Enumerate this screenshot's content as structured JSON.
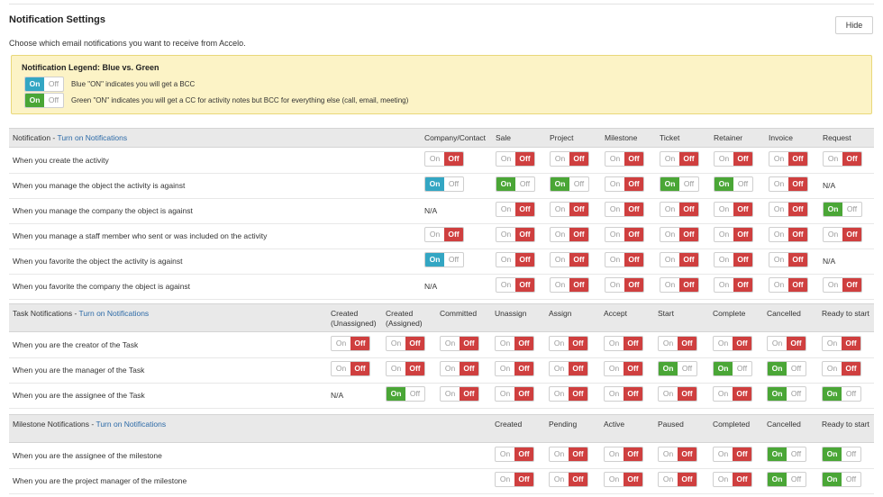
{
  "header": {
    "title": "Notification Settings",
    "hide_label": "Hide",
    "subtitle": "Choose which email notifications you want to receive from Accelo."
  },
  "legend": {
    "title": "Notification Legend: Blue vs. Green",
    "on_label": "On",
    "off_label": "Off",
    "blue_text": "Blue \"ON\" indicates you will get a BCC",
    "green_text": "Green \"ON\" indicates you will get a CC for activity notes but BCC for everything else (call, email, meeting)"
  },
  "toggle_labels": {
    "on": "On",
    "off": "Off"
  },
  "na_label": "N/A",
  "colors": {
    "off": "#cf3f3f",
    "blue_on": "#33a6c3",
    "green_on": "#4aa636",
    "legend_bg": "#fcf3c6",
    "link": "#2c6aa7"
  },
  "sections": [
    {
      "id": "notification",
      "title": "Notification - ",
      "link": "Turn on Notifications",
      "columns": [
        "Company/Contact",
        "Sale",
        "Project",
        "Milestone",
        "Ticket",
        "Retainer",
        "Invoice",
        "Request"
      ],
      "rows": [
        {
          "label": "When you create the activity",
          "states": [
            "off",
            "off",
            "off",
            "off",
            "off",
            "off",
            "off",
            "off"
          ]
        },
        {
          "label": "When you manage the object the activity is against",
          "states": [
            "blue",
            "green",
            "green",
            "off",
            "green",
            "green",
            "off",
            "na"
          ]
        },
        {
          "label": "When you manage the company the object is against",
          "states": [
            "na",
            "off",
            "off",
            "off",
            "off",
            "off",
            "off",
            "green"
          ]
        },
        {
          "label": "When you manage a staff member who sent or was included on the activity",
          "states": [
            "off",
            "off",
            "off",
            "off",
            "off",
            "off",
            "off",
            "off"
          ]
        },
        {
          "label": "When you favorite the object the activity is against",
          "states": [
            "blue",
            "off",
            "off",
            "off",
            "off",
            "off",
            "off",
            "na"
          ]
        },
        {
          "label": "When you favorite the company the object is against",
          "states": [
            "na",
            "off",
            "off",
            "off",
            "off",
            "off",
            "off",
            "off"
          ]
        }
      ]
    },
    {
      "id": "task",
      "title": "Task Notifications - ",
      "link": "Turn on Notifications",
      "columns": [
        "Created (Unassigned)",
        "Created (Assigned)",
        "Committed",
        "Unassign",
        "Assign",
        "Accept",
        "Start",
        "Complete",
        "Cancelled",
        "Ready to start"
      ],
      "rows": [
        {
          "label": "When you are the creator of the Task",
          "states": [
            "off",
            "off",
            "off",
            "off",
            "off",
            "off",
            "off",
            "off",
            "off",
            "off"
          ]
        },
        {
          "label": "When you are the manager of the Task",
          "states": [
            "off",
            "off",
            "off",
            "off",
            "off",
            "off",
            "green",
            "green",
            "green",
            "off"
          ]
        },
        {
          "label": "When you are the assignee of the Task",
          "states": [
            "na",
            "green",
            "off",
            "off",
            "off",
            "off",
            "off",
            "off",
            "green",
            "green"
          ]
        }
      ]
    },
    {
      "id": "milestone",
      "title": "Milestone Notifications - ",
      "link": "Turn on Notifications",
      "columns": [
        "Created",
        "Pending",
        "Active",
        "Paused",
        "Completed",
        "Cancelled",
        "Ready to start"
      ],
      "rows": [
        {
          "label": "When you are the assignee of the milestone",
          "states": [
            "off",
            "off",
            "off",
            "off",
            "off",
            "green",
            "green"
          ]
        },
        {
          "label": "When you are the project manager of the milestone",
          "states": [
            "off",
            "off",
            "off",
            "off",
            "off",
            "green",
            "green"
          ]
        }
      ]
    }
  ]
}
